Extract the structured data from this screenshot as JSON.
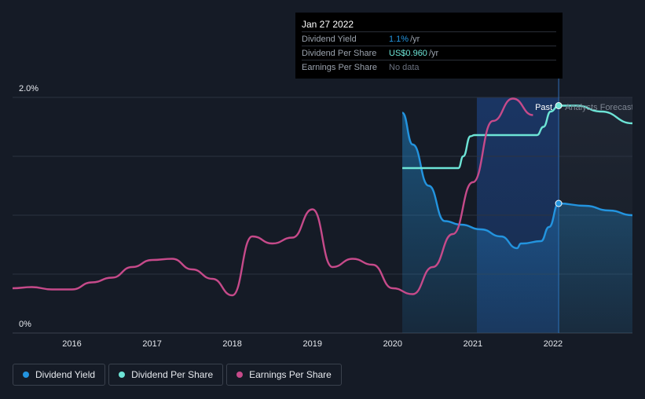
{
  "tooltip": {
    "date": "Jan 27 2022",
    "rows": [
      {
        "name": "Dividend Yield",
        "value": "1.1%",
        "unit": "/yr",
        "color": "#2394df"
      },
      {
        "name": "Dividend Per Share",
        "value": "US$0.960",
        "unit": "/yr",
        "color": "#6de4d6"
      },
      {
        "name": "Earnings Per Share",
        "value": "No data",
        "unit": "",
        "color": "#6b7280"
      }
    ]
  },
  "legend": [
    {
      "label": "Dividend Yield",
      "color": "#2394df"
    },
    {
      "label": "Dividend Per Share",
      "color": "#6de4d6"
    },
    {
      "label": "Earnings Per Share",
      "color": "#c64a8a"
    }
  ],
  "chart_data": {
    "type": "line",
    "ylim": [
      0,
      2.0
    ],
    "yticks": [
      {
        "value": 2.0,
        "label": "2.0%"
      },
      {
        "value": 0,
        "label": "0%"
      }
    ],
    "xlim": [
      2015.26,
      2022.99
    ],
    "xticks": [
      {
        "value": 2016,
        "label": "2016"
      },
      {
        "value": 2017,
        "label": "2017"
      },
      {
        "value": 2018,
        "label": "2018"
      },
      {
        "value": 2019,
        "label": "2019"
      },
      {
        "value": 2020,
        "label": "2020"
      },
      {
        "value": 2021,
        "label": "2021"
      },
      {
        "value": 2022,
        "label": "2022"
      }
    ],
    "past_label": "Past",
    "forecast_label": "Analysts Forecasts",
    "past_start": 2020.11,
    "forecast_start": 2022.07,
    "highlight_start": 2021.05,
    "series": [
      {
        "name": "Dividend Yield",
        "color": "#2394df",
        "fill": true,
        "points": [
          [
            2020.12,
            1.87
          ],
          [
            2020.25,
            1.6
          ],
          [
            2020.45,
            1.25
          ],
          [
            2020.65,
            0.95
          ],
          [
            2020.85,
            0.92
          ],
          [
            2021.1,
            0.88
          ],
          [
            2021.35,
            0.82
          ],
          [
            2021.55,
            0.72
          ],
          [
            2021.6,
            0.76
          ],
          [
            2021.6,
            0.76
          ],
          [
            2021.62,
            0.76
          ],
          [
            2021.85,
            0.78
          ],
          [
            2021.95,
            0.9
          ],
          [
            2022.07,
            1.1
          ],
          [
            2022.4,
            1.08
          ],
          [
            2022.7,
            1.04
          ],
          [
            2022.99,
            1.0
          ]
        ],
        "marker": [
          2022.07,
          1.1
        ]
      },
      {
        "name": "Dividend Per Share",
        "color": "#6de4d6",
        "fill": false,
        "points": [
          [
            2020.12,
            1.4
          ],
          [
            2020.3,
            1.4
          ],
          [
            2020.5,
            1.4
          ],
          [
            2020.82,
            1.4
          ],
          [
            2020.88,
            1.5
          ],
          [
            2020.97,
            1.67
          ],
          [
            2021.02,
            1.68
          ],
          [
            2021.2,
            1.68
          ],
          [
            2021.4,
            1.68
          ],
          [
            2021.8,
            1.68
          ],
          [
            2021.88,
            1.75
          ],
          [
            2021.97,
            1.88
          ],
          [
            2022.07,
            1.93
          ],
          [
            2022.3,
            1.93
          ],
          [
            2022.6,
            1.88
          ],
          [
            2022.99,
            1.78
          ]
        ],
        "marker": [
          2022.07,
          1.93
        ]
      },
      {
        "name": "Earnings Per Share",
        "color": "#c64a8a",
        "fill": false,
        "points": [
          [
            2015.26,
            0.38
          ],
          [
            2015.5,
            0.39
          ],
          [
            2015.75,
            0.37
          ],
          [
            2016.0,
            0.37
          ],
          [
            2016.25,
            0.43
          ],
          [
            2016.5,
            0.47
          ],
          [
            2016.75,
            0.56
          ],
          [
            2017.0,
            0.62
          ],
          [
            2017.25,
            0.63
          ],
          [
            2017.5,
            0.54
          ],
          [
            2017.75,
            0.46
          ],
          [
            2018.0,
            0.32
          ],
          [
            2018.25,
            0.82
          ],
          [
            2018.5,
            0.76
          ],
          [
            2018.75,
            0.81
          ],
          [
            2019.0,
            1.05
          ],
          [
            2019.25,
            0.56
          ],
          [
            2019.5,
            0.63
          ],
          [
            2019.75,
            0.58
          ],
          [
            2020.0,
            0.38
          ],
          [
            2020.25,
            0.33
          ],
          [
            2020.5,
            0.56
          ],
          [
            2020.75,
            0.84
          ],
          [
            2021.0,
            1.28
          ],
          [
            2021.25,
            1.8
          ],
          [
            2021.5,
            1.99
          ],
          [
            2021.75,
            1.85
          ]
        ]
      }
    ]
  }
}
